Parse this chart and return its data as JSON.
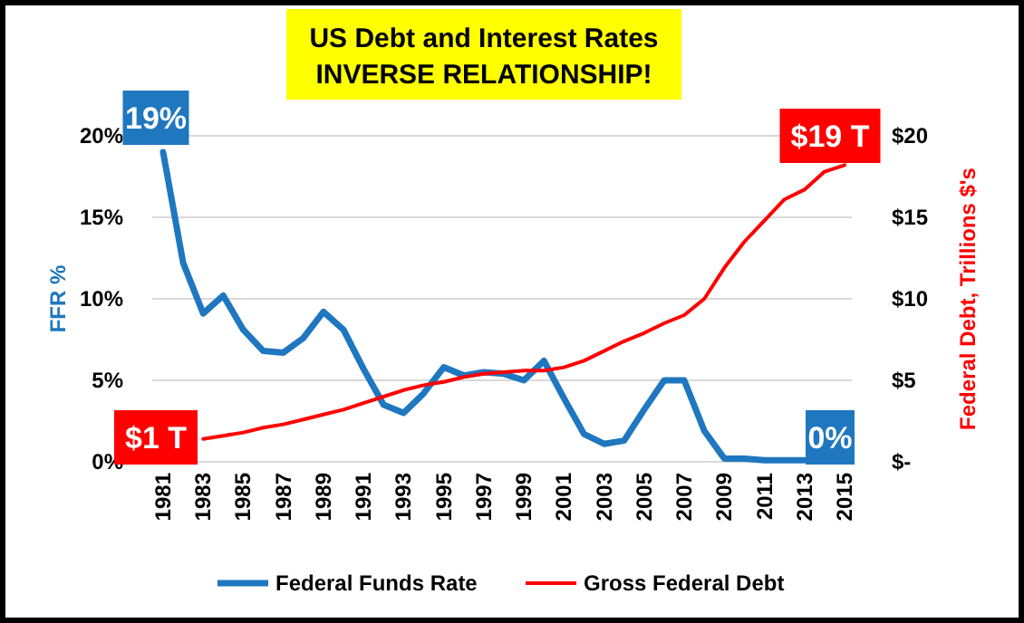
{
  "chart_data": {
    "type": "line",
    "title": "US Debt and Interest Rates\nINVERSE RELATIONSHIP!",
    "ylabel": "FFR %",
    "y2label": "Federal Debt, Trillions $'s",
    "categories": [
      "1981",
      null,
      "1983",
      null,
      "1985",
      null,
      "1987",
      null,
      "1989",
      null,
      "1991",
      null,
      "1993",
      null,
      "1995",
      null,
      "1997",
      null,
      "1999",
      null,
      "2001",
      null,
      "2003",
      null,
      "2005",
      null,
      "2007",
      null,
      "2009",
      null,
      "2011",
      null,
      "2013",
      null,
      "2015"
    ],
    "series": [
      {
        "name": "Federal Funds Rate",
        "color": "#1f77c0",
        "values": [
          19,
          12.2,
          9.1,
          10.2,
          8.1,
          6.8,
          6.7,
          7.6,
          9.2,
          8.1,
          5.7,
          3.5,
          3.0,
          4.2,
          5.8,
          5.3,
          5.5,
          5.4,
          5.0,
          6.2,
          3.9,
          1.7,
          1.1,
          1.3,
          3.2,
          5.0,
          5.0,
          1.9,
          0.2,
          0.2,
          0.1,
          0.1,
          0.1,
          null,
          null
        ]
      },
      {
        "name": "Gross Federal Debt",
        "color": "#ff0000",
        "axis": "y2",
        "values": [
          null,
          null,
          1.4,
          1.6,
          1.8,
          2.1,
          2.3,
          2.6,
          2.9,
          3.2,
          3.6,
          4.0,
          4.4,
          4.7,
          4.9,
          5.2,
          5.4,
          5.5,
          5.6,
          5.6,
          5.8,
          6.2,
          6.8,
          7.4,
          7.9,
          8.5,
          9.0,
          10.0,
          11.9,
          13.5,
          14.8,
          16.1,
          16.7,
          17.8,
          18.2
        ]
      }
    ],
    "ylim": [
      0,
      20
    ],
    "yticks": [
      {
        "value": 0,
        "label": "0%"
      },
      {
        "value": 5,
        "label": "5%"
      },
      {
        "value": 10,
        "label": "10%"
      },
      {
        "value": 15,
        "label": "15%"
      },
      {
        "value": 20,
        "label": "20%"
      }
    ],
    "y2lim": [
      0,
      20
    ],
    "y2ticks": [
      {
        "value": 0,
        "label": "$-"
      },
      {
        "value": 5,
        "label": "$5"
      },
      {
        "value": 10,
        "label": "$10"
      },
      {
        "value": 15,
        "label": "$15"
      },
      {
        "value": 20,
        "label": "$20"
      }
    ],
    "annotations": [
      "19%",
      "$19 T",
      "$1 T",
      "0%"
    ],
    "grid": "y",
    "legend": "bottom"
  }
}
